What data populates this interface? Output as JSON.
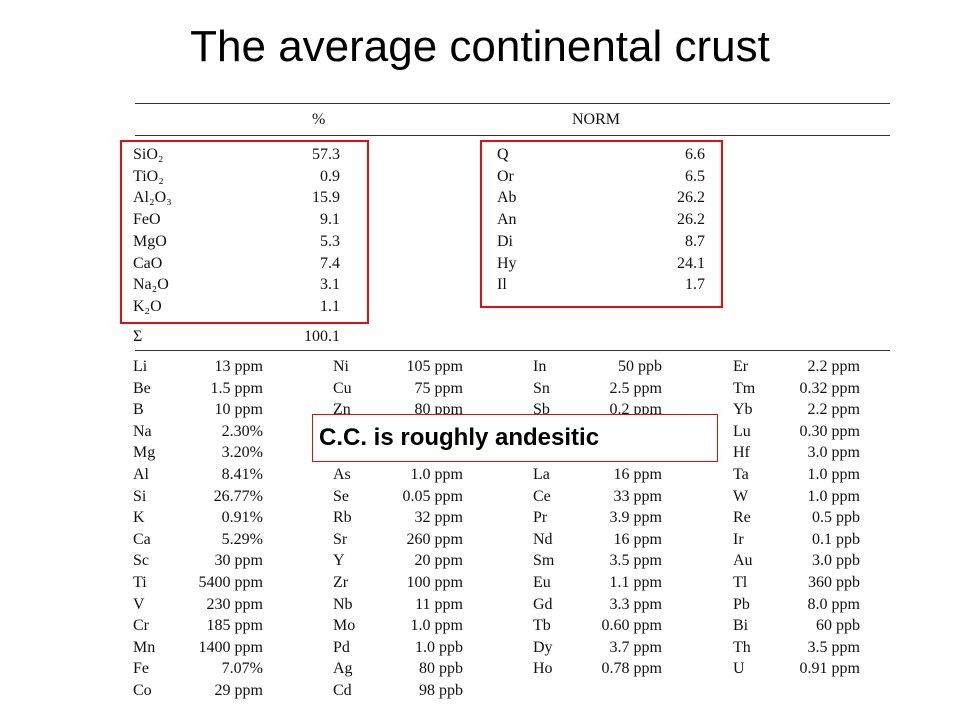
{
  "title": "The average continental crust",
  "table": {
    "header": {
      "percent": "%",
      "norm": "NORM"
    },
    "oxides": [
      [
        "SiO₂",
        "57.3"
      ],
      [
        "TiO₂",
        "0.9"
      ],
      [
        "Al₂O₃",
        "15.9"
      ],
      [
        "FeO",
        "9.1"
      ],
      [
        "MgO",
        "5.3"
      ],
      [
        "CaO",
        "7.4"
      ],
      [
        "Na₂O",
        "3.1"
      ],
      [
        "K₂O",
        "1.1"
      ]
    ],
    "sum": [
      "Σ",
      "100.1"
    ],
    "norm": [
      [
        "Q",
        "6.6"
      ],
      [
        "Or",
        "6.5"
      ],
      [
        "Ab",
        "26.2"
      ],
      [
        "An",
        "26.2"
      ],
      [
        "Di",
        "8.7"
      ],
      [
        "Hy",
        "24.1"
      ],
      [
        "Il",
        "1.7"
      ]
    ],
    "trace": [
      [
        [
          [
            "Li",
            "13 ppm"
          ],
          [
            "Be",
            "1.5 ppm"
          ],
          [
            "B",
            "10 ppm"
          ],
          [
            "Na",
            "2.30%"
          ],
          [
            "Mg",
            "3.20%"
          ],
          [
            "Al",
            "8.41%"
          ],
          [
            "Si",
            "26.77%"
          ],
          [
            "K",
            "0.91%"
          ],
          [
            "Ca",
            "5.29%"
          ],
          [
            "Sc",
            "30 ppm"
          ],
          [
            "Ti",
            "5400 ppm"
          ],
          [
            "V",
            "230 ppm"
          ],
          [
            "Cr",
            "185 ppm"
          ],
          [
            "Mn",
            "1400 ppm"
          ],
          [
            "Fe",
            "7.07%"
          ],
          [
            "Co",
            "29 ppm"
          ]
        ]
      ],
      [
        [
          [
            "Ni",
            "105 ppm"
          ],
          [
            "Cu",
            "75 ppm"
          ],
          [
            "Zn",
            "80 ppm"
          ]
        ],
        [
          [
            "As",
            "1.0 ppm"
          ],
          [
            "Se",
            "0.05 ppm"
          ],
          [
            "Rb",
            "32 ppm"
          ],
          [
            "Sr",
            "260 ppm"
          ],
          [
            "Y",
            "20 ppm"
          ],
          [
            "Zr",
            "100 ppm"
          ],
          [
            "Nb",
            "11 ppm"
          ],
          [
            "Mo",
            "1.0 ppm"
          ],
          [
            "Pd",
            "1.0 ppb"
          ],
          [
            "Ag",
            "80 ppb"
          ],
          [
            "Cd",
            "98 ppb"
          ]
        ]
      ],
      [
        [
          [
            "In",
            "50 ppb"
          ],
          [
            "Sn",
            "2.5 ppm"
          ],
          [
            "Sb",
            "0.2 ppm"
          ]
        ],
        [
          [
            "La",
            "16 ppm"
          ],
          [
            "Ce",
            "33 ppm"
          ],
          [
            "Pr",
            "3.9 ppm"
          ],
          [
            "Nd",
            "16 ppm"
          ],
          [
            "Sm",
            "3.5 ppm"
          ],
          [
            "Eu",
            "1.1 ppm"
          ],
          [
            "Gd",
            "3.3 ppm"
          ],
          [
            "Tb",
            "0.60 ppm"
          ],
          [
            "Dy",
            "3.7 ppm"
          ],
          [
            "Ho",
            "0.78 ppm"
          ]
        ]
      ],
      [
        [
          [
            "Er",
            "2.2 ppm"
          ],
          [
            "Tm",
            "0.32 ppm"
          ],
          [
            "Yb",
            "2.2 ppm"
          ],
          [
            "Lu",
            "0.30 ppm"
          ],
          [
            "Hf",
            "3.0 ppm"
          ],
          [
            "Ta",
            "1.0 ppm"
          ],
          [
            "W",
            "1.0 ppm"
          ],
          [
            "Re",
            "0.5 ppb"
          ],
          [
            "Ir",
            "0.1 ppb"
          ],
          [
            "Au",
            "3.0 ppb"
          ],
          [
            "Tl",
            "360 ppb"
          ],
          [
            "Pb",
            "8.0 ppm"
          ],
          [
            "Bi",
            "60 ppb"
          ],
          [
            "Th",
            "3.5 ppm"
          ],
          [
            "U",
            "0.91 ppm"
          ]
        ]
      ]
    ]
  },
  "callout": "C.C. is roughly andesitic"
}
